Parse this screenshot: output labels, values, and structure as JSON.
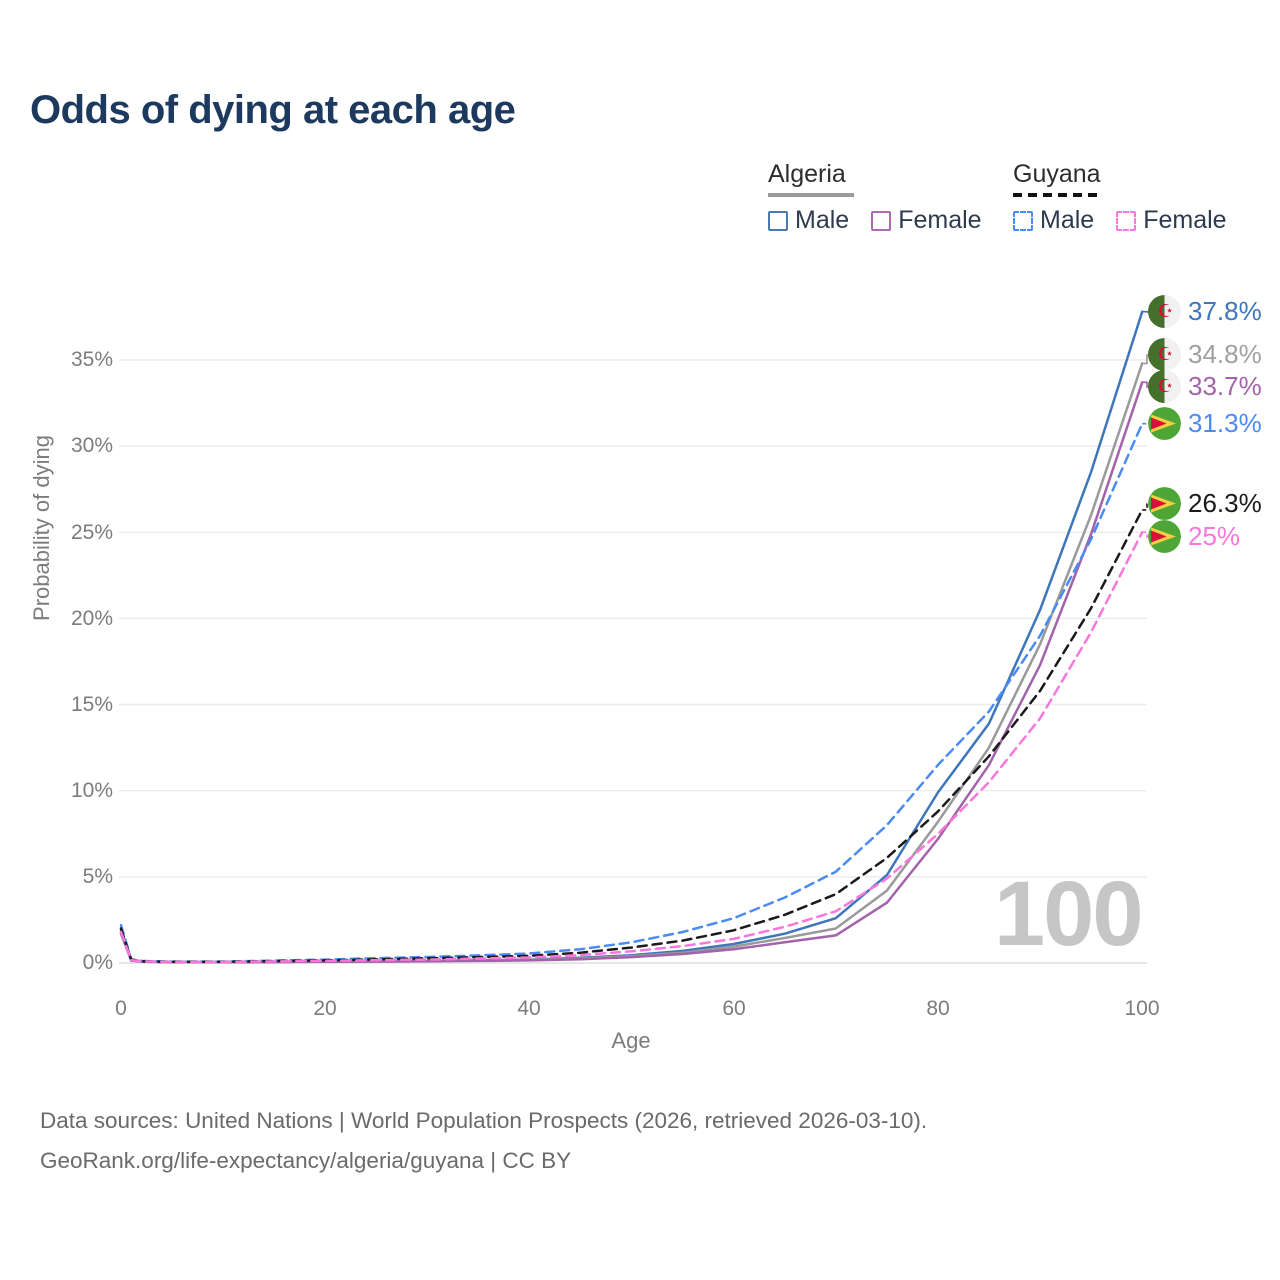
{
  "title": "Odds of dying at each age",
  "legend": {
    "groups": [
      {
        "country": "Algeria",
        "line_style": "solid",
        "underline_color": "#9a9a9a",
        "items": [
          {
            "label": "Male",
            "color": "#4a7ab5"
          },
          {
            "label": "Female",
            "color": "#ab6bb0"
          }
        ]
      },
      {
        "country": "Guyana",
        "line_style": "dashed",
        "underline_color": "#111111",
        "items": [
          {
            "label": "Male",
            "color": "#4b8bf5"
          },
          {
            "label": "Female",
            "color": "#fb76db"
          }
        ]
      }
    ]
  },
  "axes": {
    "y_title": "Probability of dying",
    "x_title": "Age",
    "y_tick_labels": [
      "35%",
      "30%",
      "25%",
      "20%",
      "15%",
      "10%",
      "5%",
      "0%"
    ],
    "x_tick_labels": [
      "0",
      "20",
      "40",
      "60",
      "80",
      "100"
    ]
  },
  "watermark_age": "100",
  "end_labels": [
    {
      "value": "37.8%",
      "series": "Algeria Male",
      "flag": "algeria",
      "color": "#3d76bb"
    },
    {
      "value": "34.8%",
      "series": "Algeria Both sexes",
      "flag": "algeria",
      "color": "#a0a0a0"
    },
    {
      "value": "33.7%",
      "series": "Algeria Female",
      "flag": "algeria",
      "color": "#a263aa"
    },
    {
      "value": "31.3%",
      "series": "Guyana Male",
      "flag": "guyana",
      "color": "#4b8bf5"
    },
    {
      "value": "26.3%",
      "series": "Guyana Both sexes",
      "flag": "guyana",
      "color": "#1a1a1a"
    },
    {
      "value": "25%",
      "series": "Guyana Female",
      "flag": "guyana",
      "color": "#fb76db"
    }
  ],
  "footer": {
    "line1": "Data sources: United Nations | World Population Prospects (2026, retrieved 2026-03-10).",
    "line2": "GeoRank.org/life-expectancy/algeria/guyana | CC BY"
  },
  "chart_data": {
    "type": "line",
    "title": "Odds of dying at each age",
    "xlabel": "Age",
    "ylabel": "Probability of dying",
    "y_unit": "percent",
    "xlim": [
      0,
      100
    ],
    "ylim": [
      0,
      38
    ],
    "x_ticks": [
      0,
      20,
      40,
      60,
      80,
      100
    ],
    "y_ticks": [
      0,
      5,
      10,
      15,
      20,
      25,
      30,
      35
    ],
    "grid": "horizontal",
    "legend_position": "top-right",
    "hover_age_indicator": "100",
    "ages": [
      0,
      1,
      2,
      5,
      10,
      15,
      20,
      25,
      30,
      35,
      40,
      45,
      50,
      55,
      60,
      65,
      70,
      75,
      80,
      85,
      90,
      95,
      100
    ],
    "series": [
      {
        "name": "Algeria Male",
        "country": "Algeria",
        "sex": "male",
        "line_style": "solid",
        "color": "#3d76bb",
        "end_value_percent": 37.8,
        "end_value_label": "37.8%",
        "values": [
          1.9,
          0.16,
          0.09,
          0.05,
          0.05,
          0.07,
          0.1,
          0.11,
          0.13,
          0.16,
          0.2,
          0.3,
          0.45,
          0.7,
          1.1,
          1.7,
          2.6,
          5.1,
          9.9,
          13.9,
          20.5,
          28.5,
          37.8
        ]
      },
      {
        "name": "Algeria Both sexes",
        "country": "Algeria",
        "sex": "both",
        "line_style": "solid",
        "color": "#9a9a9a",
        "end_value_percent": 34.8,
        "end_value_label": "34.8%",
        "values": [
          1.8,
          0.15,
          0.08,
          0.05,
          0.04,
          0.06,
          0.09,
          0.1,
          0.12,
          0.14,
          0.18,
          0.26,
          0.4,
          0.6,
          0.95,
          1.45,
          2.0,
          4.2,
          8.2,
          12.5,
          18.5,
          26.0,
          34.8
        ]
      },
      {
        "name": "Algeria Female",
        "country": "Algeria",
        "sex": "female",
        "line_style": "solid",
        "color": "#a263aa",
        "end_value_percent": 33.7,
        "end_value_label": "33.7%",
        "values": [
          1.7,
          0.14,
          0.08,
          0.04,
          0.04,
          0.05,
          0.07,
          0.08,
          0.1,
          0.12,
          0.15,
          0.22,
          0.34,
          0.52,
          0.8,
          1.2,
          1.6,
          3.5,
          7.2,
          11.5,
          17.3,
          24.9,
          33.7
        ]
      },
      {
        "name": "Guyana Male",
        "country": "Guyana",
        "sex": "male",
        "line_style": "dashed",
        "color": "#4b8bf5",
        "end_value_percent": 31.3,
        "end_value_label": "31.3%",
        "values": [
          2.2,
          0.22,
          0.12,
          0.08,
          0.08,
          0.14,
          0.2,
          0.28,
          0.35,
          0.44,
          0.55,
          0.8,
          1.2,
          1.8,
          2.6,
          3.8,
          5.3,
          8.0,
          11.5,
          14.6,
          19.0,
          24.6,
          31.3
        ]
      },
      {
        "name": "Guyana Both sexes",
        "country": "Guyana",
        "sex": "both",
        "line_style": "dashed",
        "color": "#1a1a1a",
        "end_value_percent": 26.3,
        "end_value_label": "26.3%",
        "values": [
          2.0,
          0.19,
          0.1,
          0.07,
          0.07,
          0.11,
          0.15,
          0.21,
          0.27,
          0.34,
          0.42,
          0.6,
          0.9,
          1.3,
          1.9,
          2.8,
          4.0,
          6.1,
          8.8,
          12.0,
          15.8,
          20.6,
          26.3
        ]
      },
      {
        "name": "Guyana Female",
        "country": "Guyana",
        "sex": "female",
        "line_style": "dashed",
        "color": "#fb76db",
        "end_value_percent": 25.0,
        "end_value_label": "25%",
        "values": [
          1.8,
          0.17,
          0.09,
          0.06,
          0.06,
          0.09,
          0.12,
          0.16,
          0.2,
          0.26,
          0.32,
          0.46,
          0.68,
          0.98,
          1.4,
          2.1,
          3.0,
          4.9,
          7.5,
          10.5,
          14.2,
          19.2,
          25.0
        ]
      }
    ]
  }
}
